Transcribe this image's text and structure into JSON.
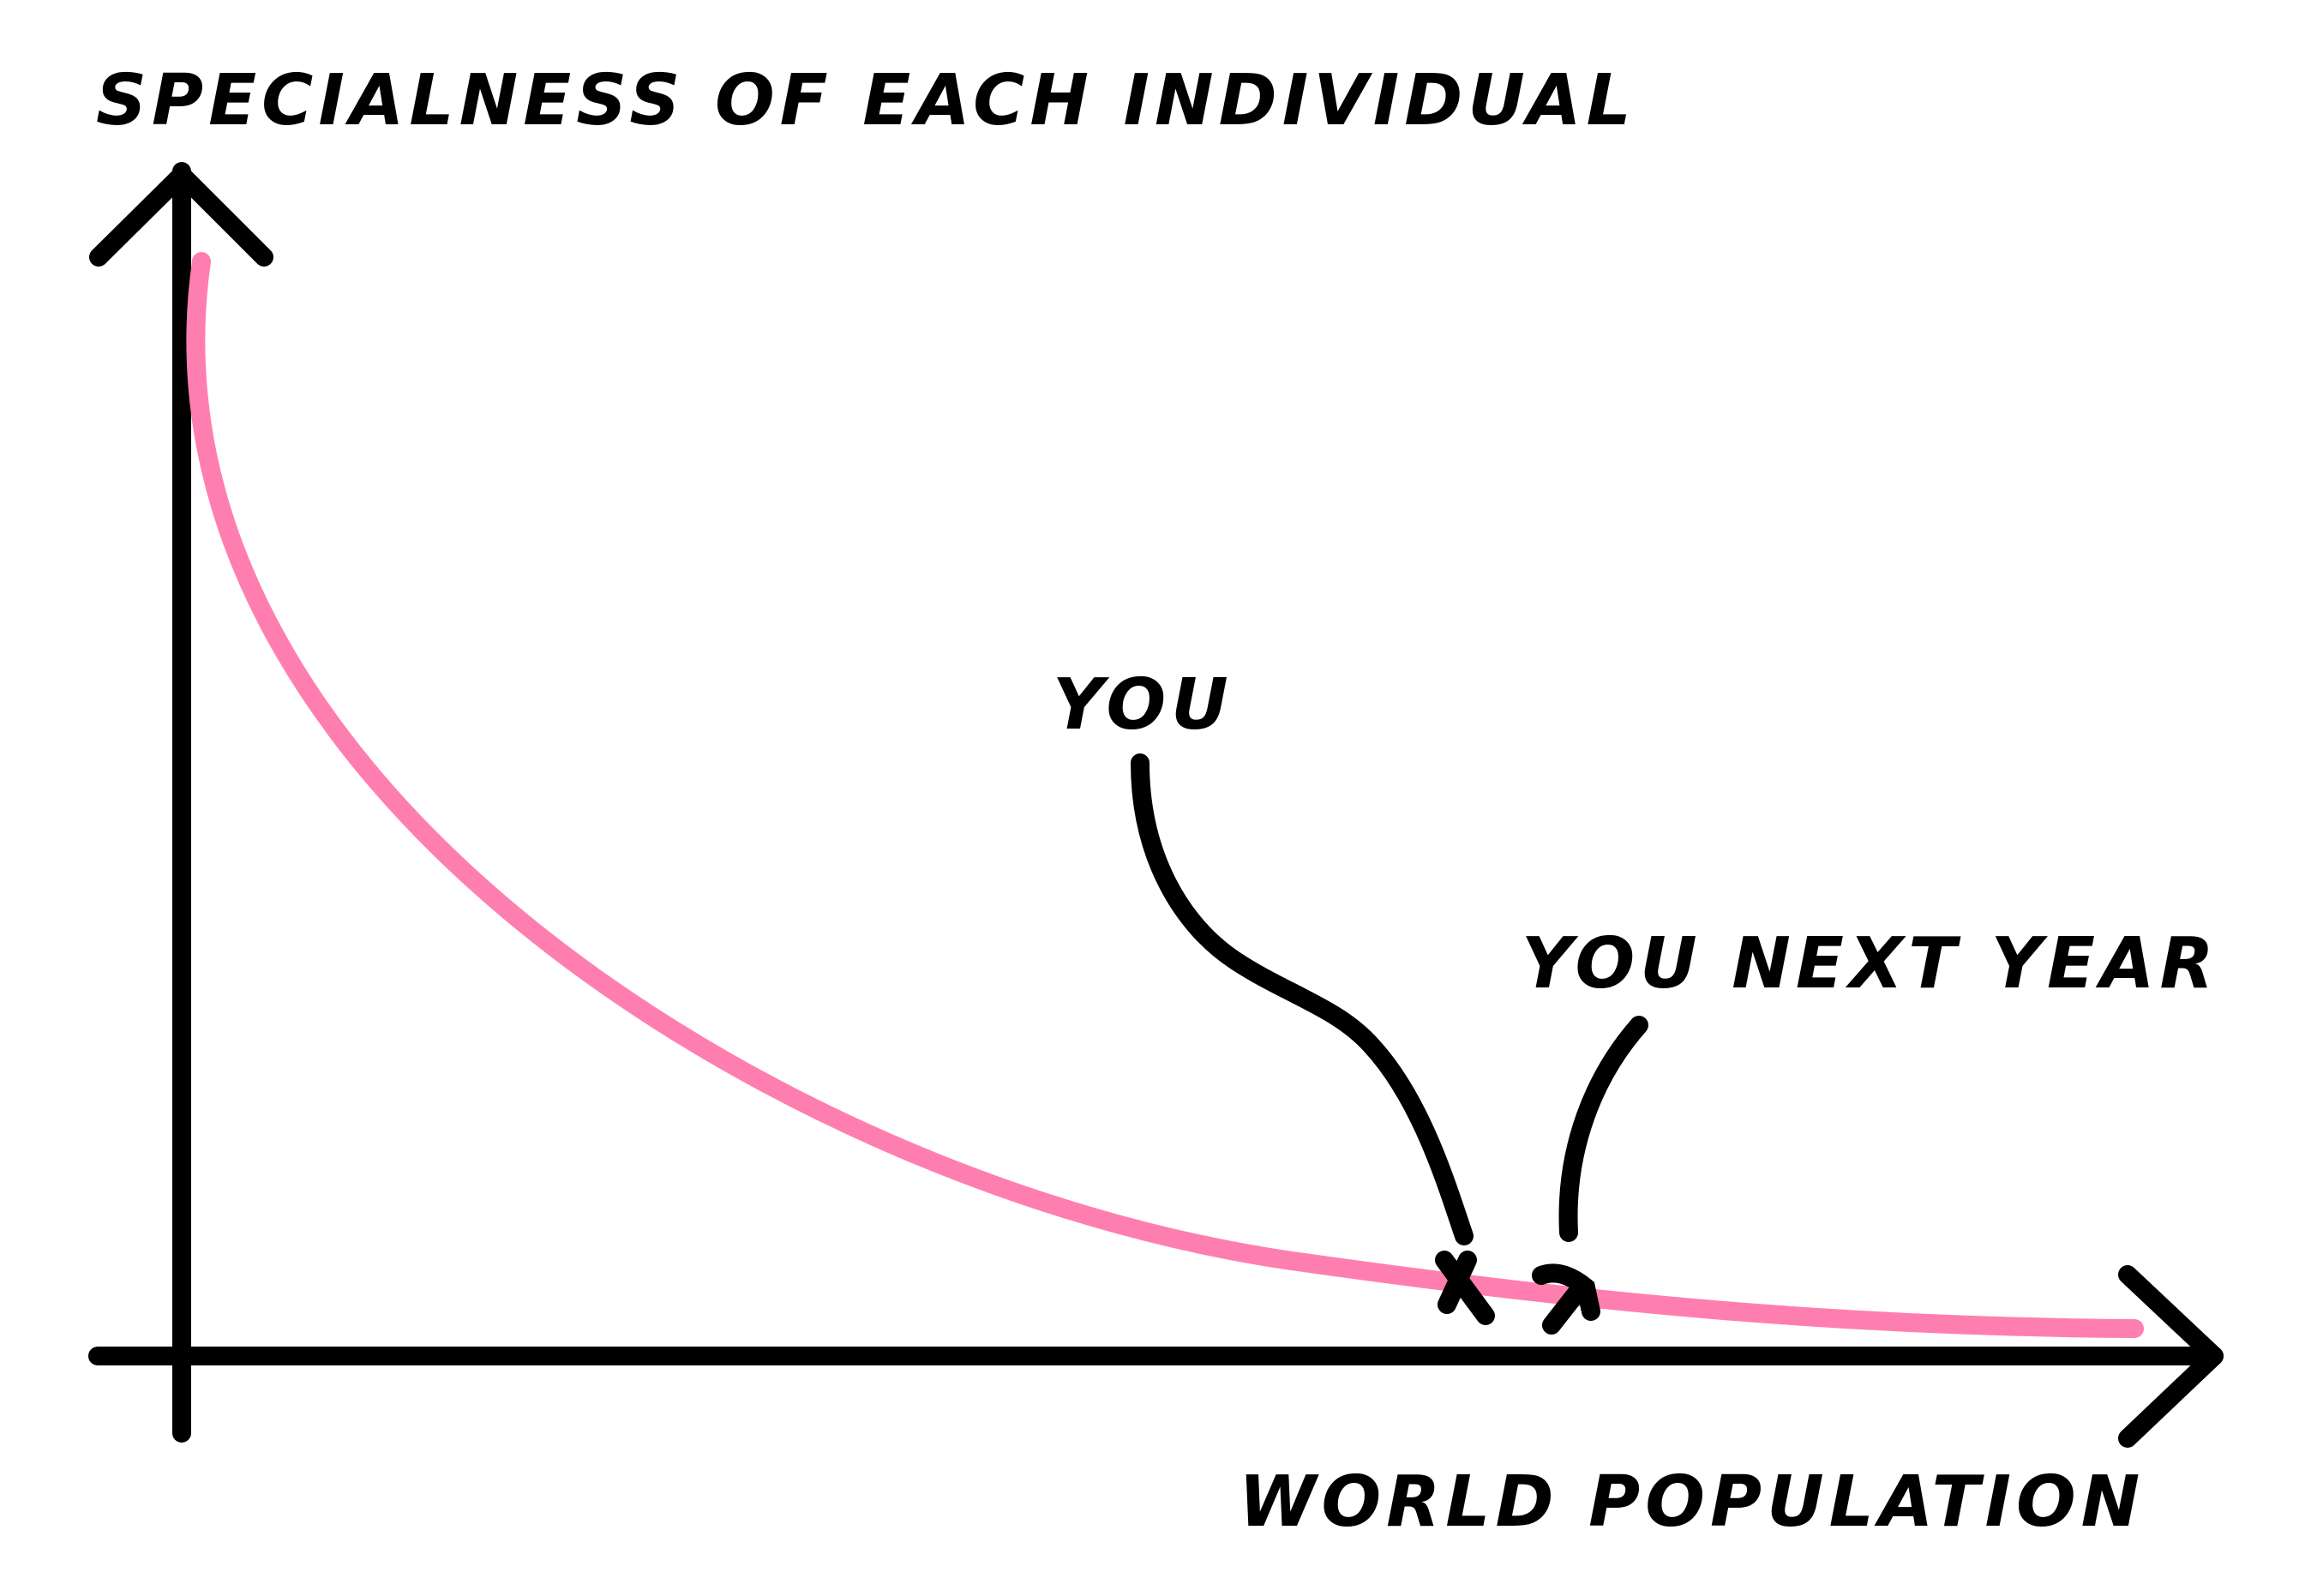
{
  "chart_data": {
    "type": "line",
    "title": "",
    "ylabel": "SPECIALNESS OF EACH INDIVIDUAL",
    "xlabel": "WORLD POPULATION",
    "grid": false,
    "legend": "none",
    "series": [
      {
        "color": "#ff7eb0",
        "curve": "decreasing, asymptotic toward the x-axis"
      }
    ],
    "points": [
      {
        "label": "YOU"
      },
      {
        "label": "YOU NEXT YEAR"
      }
    ],
    "colors": {
      "curve": "#ff7eb0",
      "ink": "#000000",
      "background": "#ffffff"
    }
  }
}
